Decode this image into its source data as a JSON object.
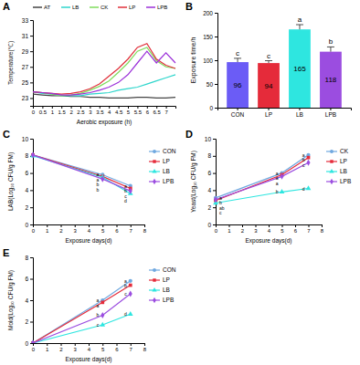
{
  "chart_data": [
    {
      "type": "line",
      "panel_label": "A",
      "x_label": "Aerobic exposure (h)",
      "y_label": "Temperature(℃)",
      "x": [
        0,
        0.5,
        1,
        1.5,
        2,
        2.5,
        3,
        3.5,
        4,
        4.5,
        5,
        5.5,
        6,
        6.5,
        7,
        7.5
      ],
      "xlim": [
        0,
        7.5
      ],
      "xticks": [
        0,
        0.5,
        1,
        1.5,
        2,
        2.5,
        3,
        3.5,
        4,
        4.5,
        5,
        5.5,
        6,
        6.5,
        7
      ],
      "ylim": [
        22,
        33
      ],
      "yticks": [
        23,
        25,
        27,
        29,
        31,
        33
      ],
      "legend": "top",
      "series": [
        {
          "name": "AT",
          "color": "#444444",
          "values": [
            23.5,
            23.4,
            23.3,
            23.3,
            23.2,
            23.2,
            23.1,
            23.1,
            23.0,
            23.0,
            23.0,
            23.1,
            23.1,
            23.0,
            23.0,
            23.1
          ]
        },
        {
          "name": "LB",
          "color": "#2fd6cc",
          "values": [
            23.8,
            23.6,
            23.5,
            23.3,
            23.3,
            23.3,
            23.5,
            23.6,
            23.7,
            24.0,
            24.2,
            24.4,
            24.8,
            25.2,
            25.6,
            26.0
          ]
        },
        {
          "name": "CK",
          "color": "#7fdc5c",
          "values": [
            23.8,
            23.7,
            23.5,
            23.3,
            23.4,
            23.6,
            24.0,
            24.5,
            25.2,
            26.3,
            27.5,
            29.0,
            29.5,
            27.8,
            27.0,
            26.8
          ]
        },
        {
          "name": "LP",
          "color": "#e0303a",
          "values": [
            23.8,
            23.7,
            23.6,
            23.5,
            23.6,
            23.8,
            24.2,
            24.8,
            25.8,
            26.8,
            28.0,
            29.5,
            30.0,
            28.0,
            27.2,
            26.8
          ]
        },
        {
          "name": "LPB",
          "color": "#9b30d9",
          "values": [
            23.8,
            23.7,
            23.6,
            23.4,
            23.4,
            23.5,
            23.7,
            24.0,
            24.4,
            25.0,
            26.0,
            27.5,
            29.0,
            27.5,
            28.8,
            27.5
          ]
        }
      ]
    },
    {
      "type": "bar",
      "panel_label": "B",
      "y_label": "Exposure time/h",
      "categories": [
        "CON",
        "LP",
        "LB",
        "LPB"
      ],
      "values": [
        96,
        94,
        165,
        118
      ],
      "errors": [
        8,
        5,
        10,
        10
      ],
      "letters": [
        "c",
        "c",
        "a",
        "b"
      ],
      "colors": [
        "#6b5cf6",
        "#e52b3a",
        "#2ee6e0",
        "#9b4de0"
      ],
      "ylim": [
        0,
        200
      ],
      "yticks": [
        0,
        50,
        100,
        150,
        200
      ],
      "data_labels": true
    },
    {
      "type": "line",
      "panel_label": "C",
      "x_label": "Exposure days(d)",
      "y_label": "LAB(Log₁₀ CFU/g FM)",
      "x": [
        0,
        5,
        7
      ],
      "xlim": [
        0,
        8
      ],
      "xticks": [
        0,
        1,
        2,
        3,
        4,
        5,
        6,
        7,
        8
      ],
      "ylim": [
        0,
        10
      ],
      "yticks": [
        0,
        2,
        4,
        6,
        8,
        10
      ],
      "legend": "right",
      "series": [
        {
          "name": "CON",
          "color": "#6fa8e0",
          "marker": "circle",
          "values": [
            8.1,
            5.8,
            4.5
          ],
          "letters": [
            null,
            "a",
            "a"
          ]
        },
        {
          "name": "LP",
          "color": "#e52b3a",
          "marker": "square",
          "values": [
            8.1,
            5.6,
            4.2
          ],
          "letters": [
            null,
            "a",
            "b"
          ]
        },
        {
          "name": "LB",
          "color": "#2ee6e0",
          "marker": "triangle",
          "values": [
            8.0,
            5.5,
            3.6
          ],
          "letters": [
            null,
            "b",
            "d"
          ]
        },
        {
          "name": "LPB",
          "color": "#9b4de0",
          "marker": "diamond",
          "values": [
            8.1,
            5.3,
            3.9
          ],
          "letters": [
            null,
            "b",
            "c"
          ]
        }
      ]
    },
    {
      "type": "line",
      "panel_label": "D",
      "x_label": "Exposure days(d)",
      "y_label": "Yeast(Log₁₀ CFU/g FM)",
      "x": [
        0,
        5,
        7
      ],
      "xlim": [
        0,
        8
      ],
      "xticks": [
        0,
        1,
        2,
        3,
        4,
        5,
        6,
        7,
        8
      ],
      "ylim": [
        0,
        10
      ],
      "yticks": [
        0,
        2,
        4,
        6,
        8,
        10
      ],
      "legend": "right",
      "series": [
        {
          "name": "CK",
          "color": "#6fa8e0",
          "marker": "circle",
          "values": [
            3.1,
            6.0,
            8.1
          ],
          "letters": [
            "a",
            "a",
            "a"
          ]
        },
        {
          "name": "LP",
          "color": "#e52b3a",
          "marker": "square",
          "values": [
            2.8,
            5.8,
            7.8
          ],
          "letters": [
            "ab",
            "a",
            "b"
          ]
        },
        {
          "name": "LB",
          "color": "#2ee6e0",
          "marker": "triangle",
          "values": [
            2.5,
            3.8,
            4.2
          ],
          "letters": [
            "c",
            "b",
            "d"
          ]
        },
        {
          "name": "LPB",
          "color": "#9b4de0",
          "marker": "diamond",
          "values": [
            2.9,
            5.6,
            7.2
          ],
          "letters": [
            "b",
            "a",
            "c"
          ]
        }
      ]
    },
    {
      "type": "line",
      "panel_label": "E",
      "x_label": "Exposure days(d)",
      "y_label": "Mold(Log₁₀ CFU/g FM)",
      "x": [
        0,
        5,
        7
      ],
      "xlim": [
        0,
        8
      ],
      "xticks": [
        0,
        1,
        2,
        3,
        4,
        5,
        6,
        7,
        8
      ],
      "ylim": [
        0,
        8
      ],
      "yticks": [
        0,
        2,
        4,
        6,
        8
      ],
      "legend": "right",
      "series": [
        {
          "name": "CON",
          "color": "#6fa8e0",
          "marker": "circle",
          "values": [
            0,
            4.0,
            5.8
          ],
          "letters": [
            null,
            "a",
            "a"
          ]
        },
        {
          "name": "LP",
          "color": "#e52b3a",
          "marker": "square",
          "values": [
            0,
            3.8,
            5.4
          ],
          "letters": [
            null,
            "a",
            "b"
          ]
        },
        {
          "name": "LB",
          "color": "#2ee6e0",
          "marker": "triangle",
          "values": [
            0,
            1.7,
            2.7
          ],
          "letters": [
            null,
            "c",
            "d"
          ]
        },
        {
          "name": "LPB",
          "color": "#9b4de0",
          "marker": "diamond",
          "values": [
            0,
            2.6,
            4.6
          ],
          "letters": [
            null,
            "b",
            "c"
          ]
        }
      ]
    }
  ]
}
